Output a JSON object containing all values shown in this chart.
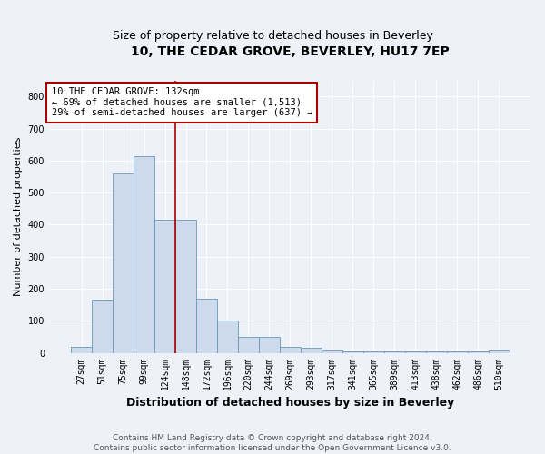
{
  "title": "10, THE CEDAR GROVE, BEVERLEY, HU17 7EP",
  "subtitle": "Size of property relative to detached houses in Beverley",
  "xlabel": "Distribution of detached houses by size in Beverley",
  "ylabel": "Number of detached properties",
  "categories": [
    "27sqm",
    "51sqm",
    "75sqm",
    "99sqm",
    "124sqm",
    "148sqm",
    "172sqm",
    "196sqm",
    "220sqm",
    "244sqm",
    "269sqm",
    "293sqm",
    "317sqm",
    "341sqm",
    "365sqm",
    "389sqm",
    "413sqm",
    "438sqm",
    "462sqm",
    "486sqm",
    "510sqm"
  ],
  "values": [
    20,
    165,
    560,
    615,
    415,
    415,
    170,
    100,
    50,
    50,
    20,
    15,
    8,
    5,
    3,
    3,
    3,
    3,
    3,
    3,
    8
  ],
  "bar_color": "#ccdaeb",
  "bar_edge_color": "#6699bb",
  "property_line_index": 5,
  "property_line_color": "#aa0000",
  "annotation_text": "10 THE CEDAR GROVE: 132sqm\n← 69% of detached houses are smaller (1,513)\n29% of semi-detached houses are larger (637) →",
  "annotation_box_facecolor": "#ffffff",
  "annotation_box_edgecolor": "#aa0000",
  "footnote_line1": "Contains HM Land Registry data © Crown copyright and database right 2024.",
  "footnote_line2": "Contains public sector information licensed under the Open Government Licence v3.0.",
  "ylim": [
    0,
    850
  ],
  "yticks": [
    0,
    100,
    200,
    300,
    400,
    500,
    600,
    700,
    800
  ],
  "bg_color": "#eef2f8",
  "plot_bg_color": "#eef2f8",
  "grid_color": "#ffffff",
  "title_fontsize": 10,
  "subtitle_fontsize": 9,
  "xlabel_fontsize": 9,
  "ylabel_fontsize": 8,
  "tick_fontsize": 7,
  "annotation_fontsize": 7.5,
  "footnote_fontsize": 6.5
}
